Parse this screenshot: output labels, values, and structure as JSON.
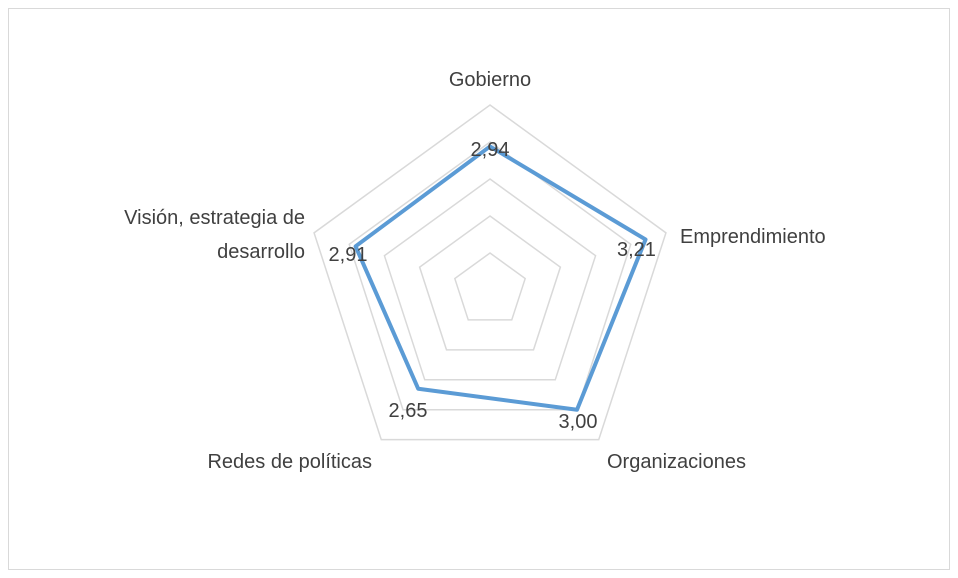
{
  "chart_data": {
    "type": "radar",
    "categories": [
      "Gobierno",
      "Emprendimiento",
      "Organizaciones",
      "Redes de políticas",
      "Visión, estrategia de desarrollo"
    ],
    "values": [
      2.94,
      3.21,
      3.0,
      2.65,
      2.91
    ],
    "value_labels": [
      "2,94",
      "3,21",
      "3,00",
      "2,65",
      "2,91"
    ],
    "color": "#5b9bd5",
    "ylim": [
      1,
      3.5
    ],
    "yticks": [
      1,
      1.5,
      2,
      2.5,
      3,
      3.5
    ],
    "grid": true
  }
}
